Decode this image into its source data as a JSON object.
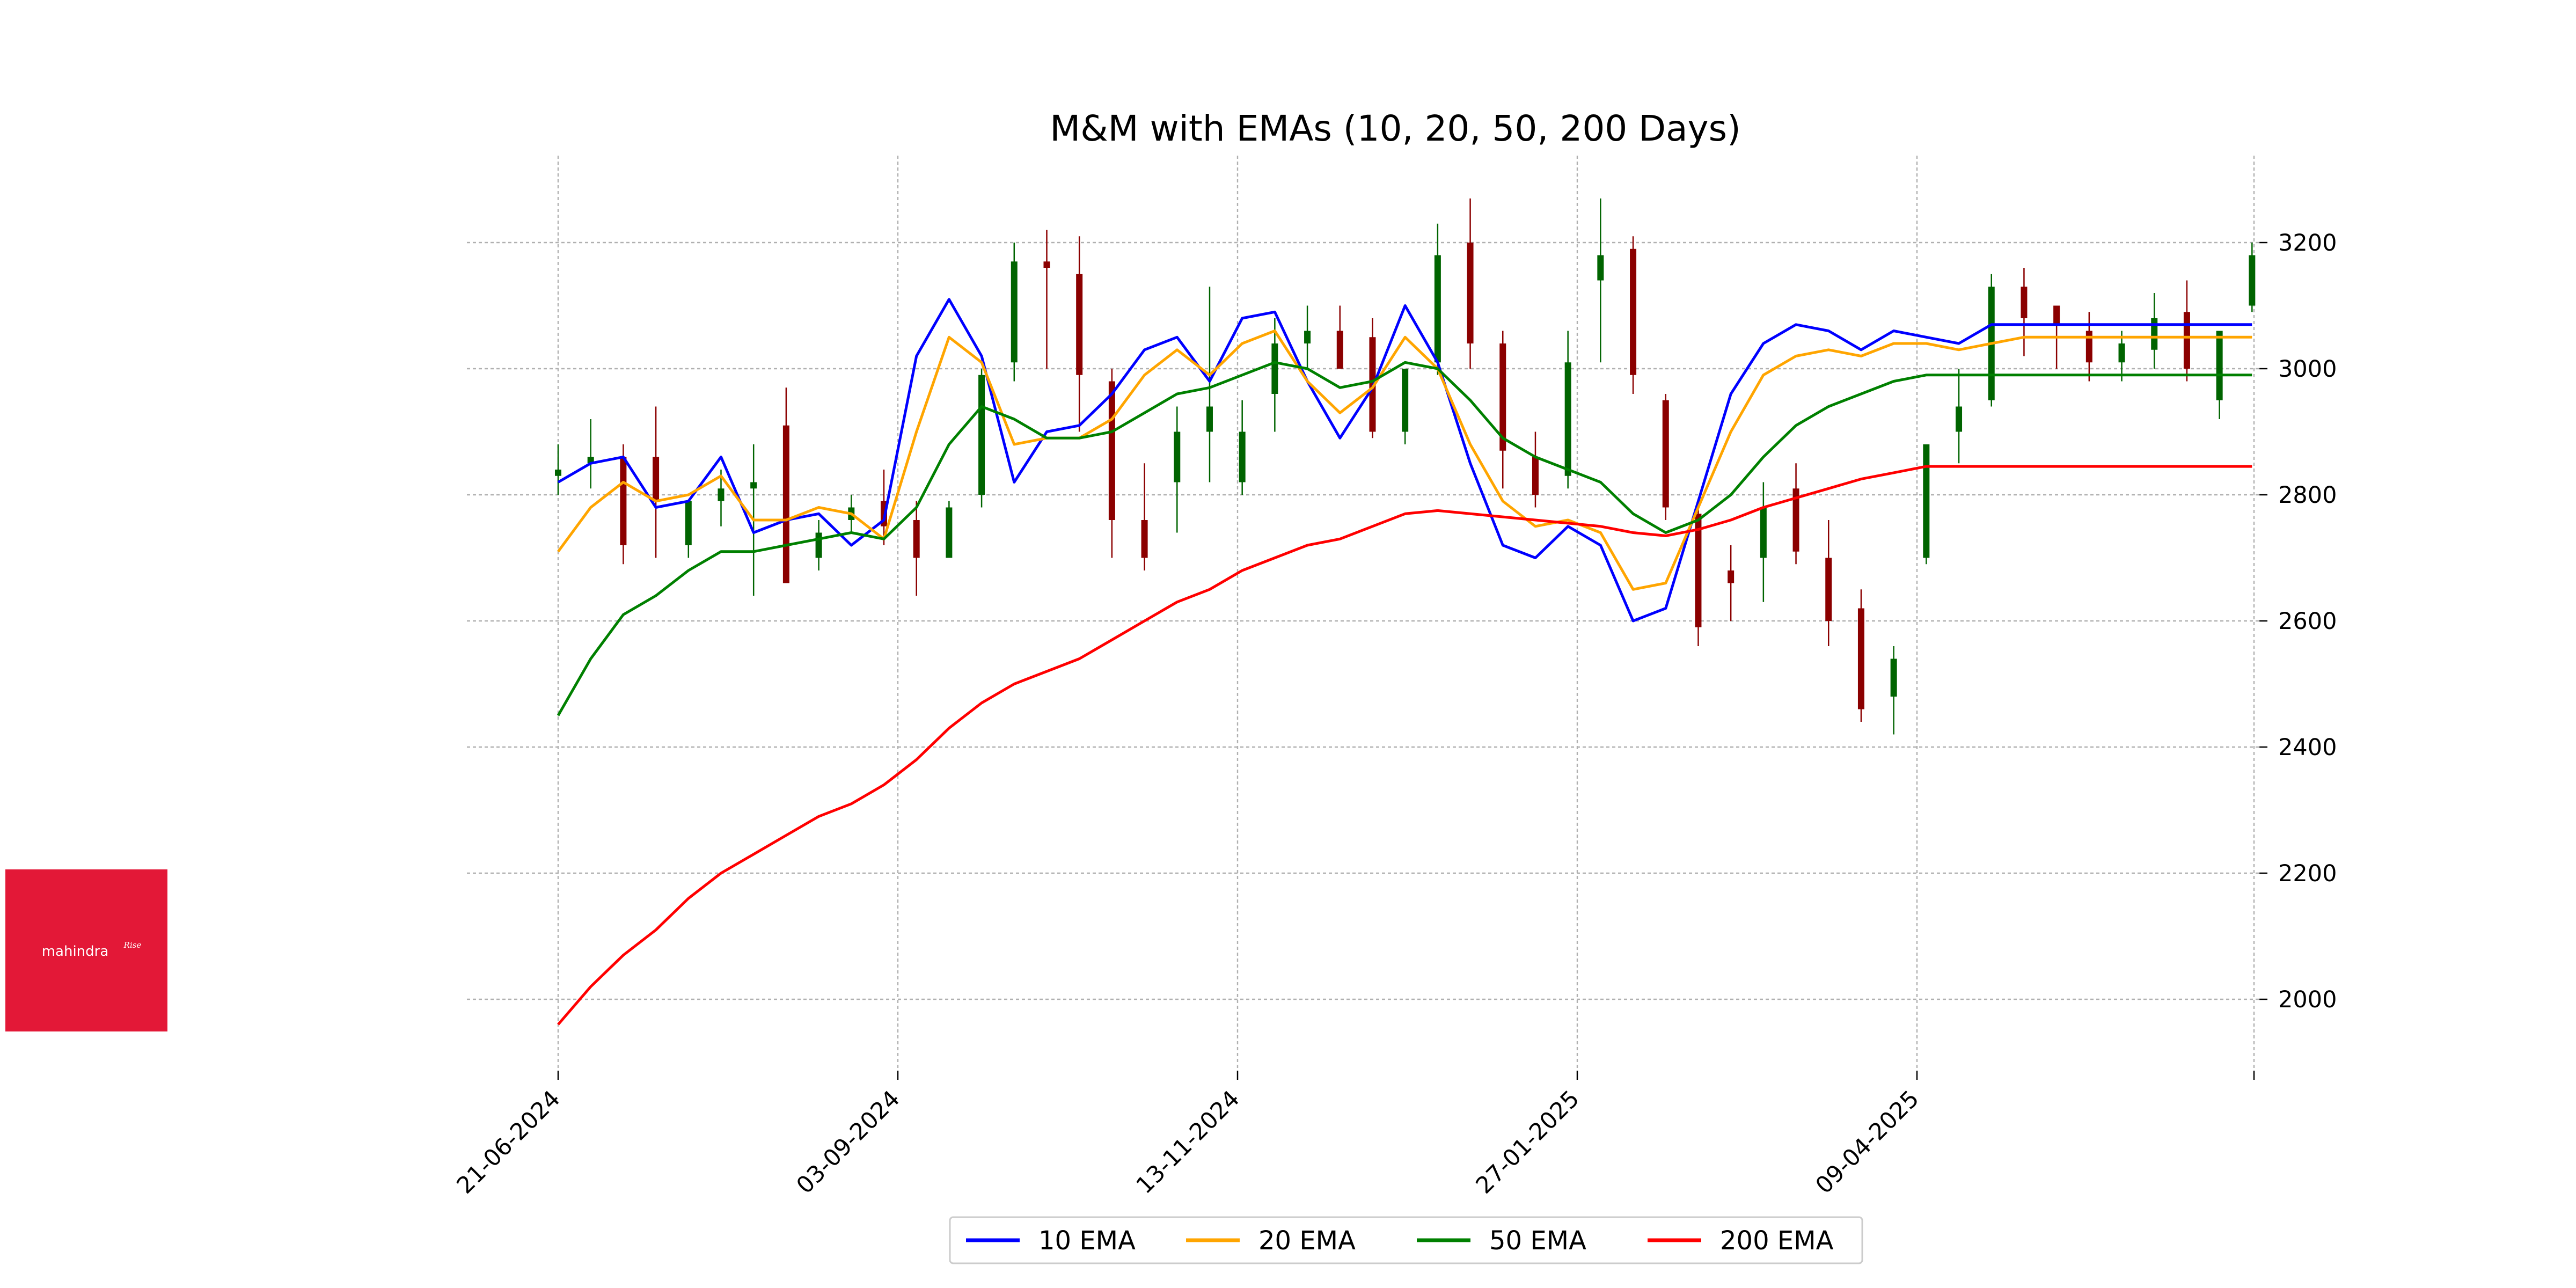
{
  "logo": {
    "text": "mahindra",
    "superscript": "Rise",
    "color": "#E31837"
  },
  "chart_data": {
    "type": "line",
    "title": "M&M with EMAs (10, 20, 50, 200 Days)",
    "xlabel": "",
    "ylabel": "",
    "x_ticks": [
      "21-06-2024",
      "03-09-2024",
      "13-11-2024",
      "27-01-2025",
      "09-04-2025"
    ],
    "y_ticks": [
      2000,
      2200,
      2400,
      2600,
      2800,
      3000,
      3200
    ],
    "ylim": [
      1960,
      3280
    ],
    "grid": true,
    "y_axis_side": "right",
    "legend": {
      "position": "bottom-center",
      "entries": [
        "10 EMA",
        "20 EMA",
        "50 EMA",
        "200 EMA"
      ]
    },
    "candle_colors": {
      "up": "#006400",
      "down": "#8B0000"
    },
    "x": [
      "2024-06-21",
      "2024-06-28",
      "2024-07-05",
      "2024-07-12",
      "2024-07-19",
      "2024-07-26",
      "2024-08-02",
      "2024-08-09",
      "2024-08-16",
      "2024-08-23",
      "2024-08-30",
      "2024-09-06",
      "2024-09-13",
      "2024-09-20",
      "2024-09-27",
      "2024-10-04",
      "2024-10-11",
      "2024-10-18",
      "2024-10-25",
      "2024-11-01",
      "2024-11-08",
      "2024-11-15",
      "2024-11-22",
      "2024-11-29",
      "2024-12-06",
      "2024-12-13",
      "2024-12-20",
      "2024-12-27",
      "2025-01-03",
      "2025-01-10",
      "2025-01-17",
      "2025-01-24",
      "2025-01-31",
      "2025-02-07",
      "2025-02-14",
      "2025-02-21",
      "2025-02-28",
      "2025-03-07",
      "2025-03-14",
      "2025-03-21",
      "2025-03-28",
      "2025-04-04",
      "2025-04-11",
      "2025-04-18",
      "2025-04-25",
      "2025-05-02",
      "2025-05-09",
      "2025-05-16",
      "2025-05-23",
      "2025-05-30",
      "2025-06-06",
      "2025-06-13",
      "2025-06-20"
    ],
    "candles": {
      "open": [
        2830,
        2850,
        2860,
        2860,
        2720,
        2790,
        2810,
        2910,
        2700,
        2760,
        2790,
        2760,
        2700,
        2800,
        3010,
        3170,
        3150,
        2980,
        2760,
        2820,
        2900,
        2820,
        2960,
        3040,
        3060,
        3050,
        2900,
        3010,
        3200,
        3040,
        2860,
        2830,
        3140,
        3190,
        2950,
        2770,
        2680,
        2700,
        2810,
        2700,
        2620,
        2480,
        2700,
        2900,
        2950,
        3130,
        3100,
        3060,
        3010,
        3030,
        3090,
        2950,
        3100
      ],
      "high": [
        2880,
        2920,
        2880,
        2940,
        2770,
        2840,
        2880,
        2970,
        2760,
        2800,
        2840,
        2790,
        2790,
        3000,
        3200,
        3220,
        3210,
        3000,
        2850,
        2940,
        3130,
        2950,
        3080,
        3100,
        3100,
        3080,
        2970,
        3230,
        3270,
        3060,
        2900,
        3060,
        3270,
        3210,
        2960,
        2780,
        2720,
        2820,
        2850,
        2760,
        2650,
        2560,
        2780,
        3000,
        3150,
        3160,
        3100,
        3090,
        3060,
        3120,
        3140,
        3060,
        3200
      ],
      "low": [
        2800,
        2810,
        2690,
        2700,
        2700,
        2750,
        2640,
        2690,
        2680,
        2740,
        2720,
        2640,
        2700,
        2780,
        2980,
        3000,
        2900,
        2700,
        2680,
        2740,
        2820,
        2800,
        2900,
        3000,
        3000,
        2890,
        2880,
        2990,
        3000,
        2810,
        2780,
        2810,
        3010,
        2960,
        2760,
        2560,
        2600,
        2630,
        2690,
        2560,
        2440,
        2420,
        2690,
        2850,
        2940,
        3020,
        3000,
        2980,
        2980,
        3000,
        2980,
        2920,
        3090
      ],
      "close": [
        2840,
        2860,
        2720,
        2790,
        2790,
        2810,
        2820,
        2660,
        2740,
        2780,
        2750,
        2700,
        2780,
        2990,
        3170,
        3160,
        2990,
        2760,
        2700,
        2900,
        2940,
        2900,
        3040,
        3060,
        3000,
        2900,
        3000,
        3180,
        3040,
        2870,
        2800,
        3010,
        3180,
        2990,
        2780,
        2590,
        2660,
        2780,
        2710,
        2600,
        2460,
        2540,
        2880,
        2940,
        3130,
        3080,
        3070,
        3010,
        3040,
        3080,
        3000,
        3060,
        3180
      ]
    },
    "series": [
      {
        "name": "10 EMA",
        "color": "#0000FF",
        "values": [
          2820,
          2850,
          2860,
          2780,
          2790,
          2860,
          2740,
          2760,
          2770,
          2720,
          2760,
          3020,
          3110,
          3020,
          2820,
          2900,
          2910,
          2960,
          3030,
          3050,
          2980,
          3080,
          3090,
          2980,
          2890,
          2970,
          3100,
          3010,
          2850,
          2720,
          2700,
          2750,
          2720,
          2600,
          2620,
          2790,
          2960,
          3040,
          3070,
          3060,
          3030,
          3060,
          3050,
          3040,
          3070,
          3070,
          3070,
          3070,
          3070,
          3070,
          3070,
          3070,
          3070
        ]
      },
      {
        "name": "20 EMA",
        "color": "#FFA500",
        "values": [
          2710,
          2780,
          2820,
          2790,
          2800,
          2830,
          2760,
          2760,
          2780,
          2770,
          2730,
          2900,
          3050,
          3010,
          2880,
          2890,
          2890,
          2920,
          2990,
          3030,
          2990,
          3040,
          3060,
          2980,
          2930,
          2970,
          3050,
          3000,
          2880,
          2790,
          2750,
          2760,
          2740,
          2650,
          2660,
          2780,
          2900,
          2990,
          3020,
          3030,
          3020,
          3040,
          3040,
          3030,
          3040,
          3050,
          3050,
          3050,
          3050,
          3050,
          3050,
          3050,
          3050
        ]
      },
      {
        "name": "50 EMA",
        "color": "#008000",
        "values": [
          2450,
          2540,
          2610,
          2640,
          2680,
          2710,
          2710,
          2720,
          2730,
          2740,
          2730,
          2780,
          2880,
          2940,
          2920,
          2890,
          2890,
          2900,
          2930,
          2960,
          2970,
          2990,
          3010,
          3000,
          2970,
          2980,
          3010,
          3000,
          2950,
          2890,
          2860,
          2840,
          2820,
          2770,
          2740,
          2760,
          2800,
          2860,
          2910,
          2940,
          2960,
          2980,
          2990,
          2990,
          2990,
          2990,
          2990,
          2990,
          2990,
          2990,
          2990,
          2990,
          2990
        ]
      },
      {
        "name": "200 EMA",
        "color": "#FF0000",
        "values": [
          1960,
          2020,
          2070,
          2110,
          2160,
          2200,
          2230,
          2260,
          2290,
          2310,
          2340,
          2380,
          2430,
          2470,
          2500,
          2520,
          2540,
          2570,
          2600,
          2630,
          2650,
          2680,
          2700,
          2720,
          2730,
          2750,
          2770,
          2775,
          2770,
          2765,
          2760,
          2755,
          2750,
          2740,
          2735,
          2745,
          2760,
          2780,
          2795,
          2810,
          2825,
          2835,
          2845,
          2845,
          2845,
          2845,
          2845,
          2845,
          2845,
          2845,
          2845,
          2845,
          2845
        ]
      }
    ]
  }
}
